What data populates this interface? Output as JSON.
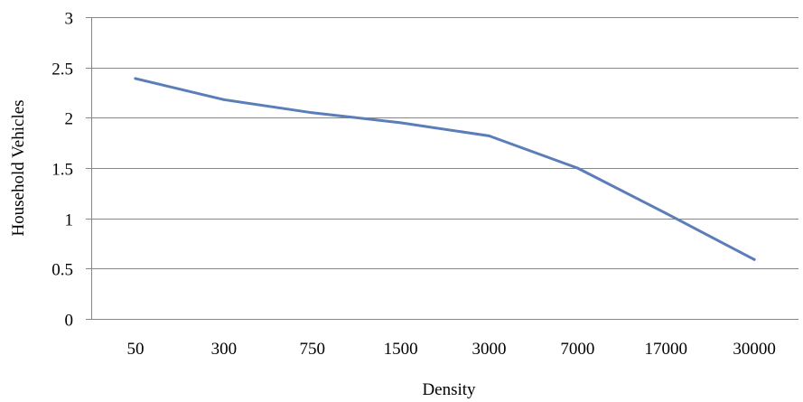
{
  "chart_data": {
    "type": "line",
    "title": "",
    "xlabel": "Density",
    "ylabel": "Household Vehicles",
    "categories": [
      "50",
      "300",
      "750",
      "1500",
      "3000",
      "7000",
      "17000",
      "30000"
    ],
    "series": [
      {
        "values": [
          2.39,
          2.18,
          2.05,
          1.95,
          1.82,
          1.5,
          1.05,
          0.59
        ],
        "color": "#5B7DB8"
      }
    ],
    "ylim": [
      0,
      3
    ],
    "yticks": [
      "0",
      "0.5",
      "1",
      "1.5",
      "2",
      "2.5",
      "3"
    ],
    "grid": true,
    "legend": "none"
  }
}
